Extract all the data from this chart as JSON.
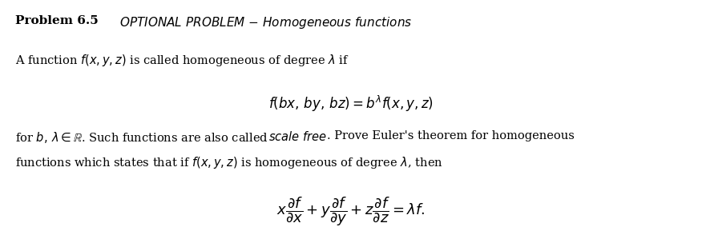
{
  "background_color": "#ffffff",
  "figsize": [
    8.76,
    2.94
  ],
  "dpi": 100,
  "text_color": "#000000",
  "font_size_body": 10.5,
  "font_size_title": 11,
  "font_size_eq": 12
}
